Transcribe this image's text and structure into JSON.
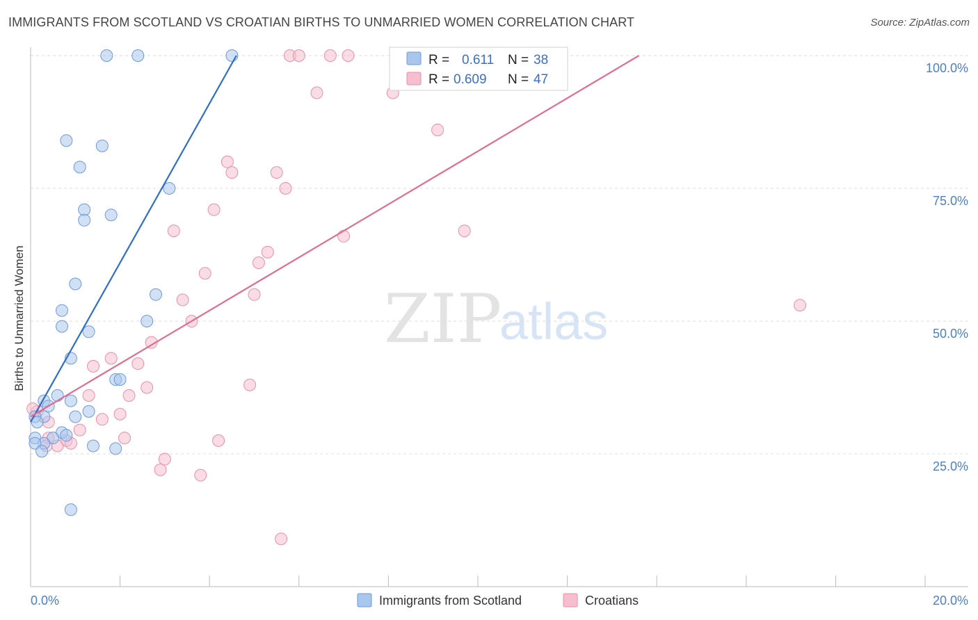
{
  "title": "IMMIGRANTS FROM SCOTLAND VS CROATIAN BIRTHS TO UNMARRIED WOMEN CORRELATION CHART",
  "source": "Source: ZipAtlas.com",
  "watermark": {
    "zip": "ZIP",
    "atlas": "atlas"
  },
  "colors": {
    "blue_fill": "#a9c6ec",
    "blue_stroke": "#6f9ad8",
    "blue_line": "#2f6ec7",
    "pink_fill": "#f5bfd0",
    "pink_stroke": "#e98fab",
    "pink_line": "#e06b93",
    "grid": "#dcdcdc",
    "axis_label": "#4a7fc8"
  },
  "legend": {
    "r_label": "R =",
    "n_label": "N =",
    "series": [
      {
        "r": "0.611",
        "n": "38"
      },
      {
        "r": "0.609",
        "n": "47"
      }
    ]
  },
  "chart_data": {
    "type": "scatter",
    "title": "IMMIGRANTS FROM SCOTLAND VS CROATIAN BIRTHS TO UNMARRIED WOMEN CORRELATION CHART",
    "xlabel": "",
    "ylabel": "Births to Unmarried Women",
    "xlim": [
      0,
      20
    ],
    "ylim": [
      0,
      102
    ],
    "x_tick_labels": [
      "0.0%",
      "20.0%"
    ],
    "y_ticks": [
      25,
      50,
      75,
      100
    ],
    "y_tick_labels": [
      "25.0%",
      "50.0%",
      "75.0%",
      "100.0%"
    ],
    "series": [
      {
        "name": "Immigrants from Scotland",
        "color": "blue",
        "trend": {
          "x": [
            0.0,
            4.6
          ],
          "y": [
            31.0,
            100.0
          ]
        },
        "points": [
          [
            1.7,
            100
          ],
          [
            2.4,
            100
          ],
          [
            4.5,
            100
          ],
          [
            0.8,
            84
          ],
          [
            1.6,
            83
          ],
          [
            1.1,
            79
          ],
          [
            3.1,
            75
          ],
          [
            1.2,
            71
          ],
          [
            1.8,
            70
          ],
          [
            1.2,
            69
          ],
          [
            1.0,
            57
          ],
          [
            2.8,
            55
          ],
          [
            0.7,
            52
          ],
          [
            2.6,
            50
          ],
          [
            0.7,
            49
          ],
          [
            1.3,
            48
          ],
          [
            0.9,
            43
          ],
          [
            1.9,
            39
          ],
          [
            2.0,
            39
          ],
          [
            0.6,
            36
          ],
          [
            0.9,
            35
          ],
          [
            0.3,
            35
          ],
          [
            0.4,
            34
          ],
          [
            1.3,
            33
          ],
          [
            0.3,
            32
          ],
          [
            0.1,
            32
          ],
          [
            1.0,
            32
          ],
          [
            0.15,
            31
          ],
          [
            0.7,
            29
          ],
          [
            0.8,
            28.5
          ],
          [
            0.1,
            28
          ],
          [
            0.5,
            28
          ],
          [
            0.3,
            27
          ],
          [
            0.1,
            27
          ],
          [
            1.4,
            26.5
          ],
          [
            1.9,
            26
          ],
          [
            0.25,
            25.5
          ],
          [
            0.9,
            14.5
          ]
        ]
      },
      {
        "name": "Croatians",
        "color": "pink",
        "trend": {
          "x": [
            0.0,
            13.6
          ],
          "y": [
            32.0,
            100.0
          ]
        },
        "points": [
          [
            5.8,
            100
          ],
          [
            6.0,
            100
          ],
          [
            6.7,
            100
          ],
          [
            7.1,
            100
          ],
          [
            6.4,
            93
          ],
          [
            8.1,
            93
          ],
          [
            9.1,
            86
          ],
          [
            4.4,
            80
          ],
          [
            4.5,
            78
          ],
          [
            5.5,
            78
          ],
          [
            5.7,
            75
          ],
          [
            4.1,
            71
          ],
          [
            3.2,
            67
          ],
          [
            9.7,
            67
          ],
          [
            7.0,
            66
          ],
          [
            5.3,
            63
          ],
          [
            5.1,
            61
          ],
          [
            3.9,
            59
          ],
          [
            5.0,
            55
          ],
          [
            3.4,
            54
          ],
          [
            3.6,
            50
          ],
          [
            2.7,
            46
          ],
          [
            1.8,
            43
          ],
          [
            1.4,
            41.5
          ],
          [
            2.4,
            42
          ],
          [
            4.9,
            38
          ],
          [
            2.6,
            37.5
          ],
          [
            2.2,
            36
          ],
          [
            1.3,
            36
          ],
          [
            2.0,
            32.5
          ],
          [
            1.6,
            31.5
          ],
          [
            0.15,
            33
          ],
          [
            0.4,
            31
          ],
          [
            1.1,
            29.5
          ],
          [
            0.4,
            28
          ],
          [
            2.1,
            28
          ],
          [
            4.2,
            27.5
          ],
          [
            0.8,
            27.5
          ],
          [
            0.9,
            27
          ],
          [
            0.6,
            26.5
          ],
          [
            0.35,
            26.5
          ],
          [
            3.0,
            24
          ],
          [
            2.9,
            22
          ],
          [
            3.8,
            21
          ],
          [
            5.6,
            9
          ],
          [
            17.2,
            53
          ],
          [
            0.05,
            33.5
          ]
        ]
      }
    ]
  }
}
